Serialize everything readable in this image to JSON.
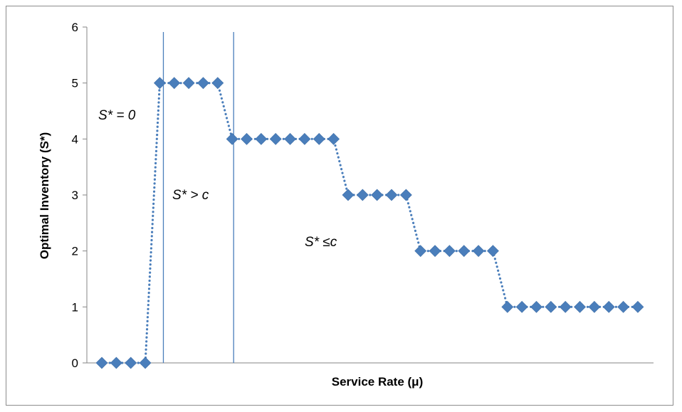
{
  "chart_data": {
    "type": "scatter",
    "title": "",
    "xlabel": "Service Rate (μ)",
    "ylabel": "Optimal Inventory (S*)",
    "ylim": [
      0,
      6
    ],
    "yticks": [
      "0",
      "1",
      "2",
      "3",
      "4",
      "5",
      "6"
    ],
    "grid": false,
    "legend": "none",
    "marker": "diamond",
    "line_style": "dotted",
    "color": "#4a7ebb",
    "series": [
      {
        "values": [
          0,
          0,
          0,
          0,
          5,
          5,
          5,
          5,
          5,
          4,
          4,
          4,
          4,
          4,
          4,
          4,
          4,
          3,
          3,
          3,
          3,
          3,
          2,
          2,
          2,
          2,
          2,
          2,
          1,
          1,
          1,
          1,
          1,
          1,
          1,
          1,
          1,
          1
        ]
      }
    ],
    "annotations": [
      {
        "text": "S* = 0"
      },
      {
        "text": "S* > c"
      },
      {
        "text": "S* ≤c"
      }
    ]
  }
}
